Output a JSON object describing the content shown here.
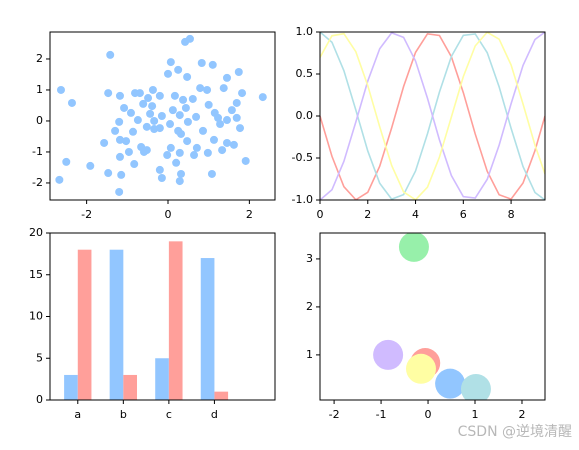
{
  "chart_data": [
    {
      "type": "scatter",
      "color": "#92c6ff",
      "x": [
        0.42,
        0.54,
        -1.42,
        0.83,
        0.07,
        1.1,
        0.25,
        0,
        0.47,
        1.74,
        1.45,
        -2.63,
        -2.36,
        -1.47,
        -1.18,
        -0.81,
        -0.69,
        -0.37,
        0.79,
        0.96,
        1.37,
        1.82,
        2.33,
        -0.49,
        -0.2,
        0.17,
        0.37,
        0.61,
        1.0,
        1.69,
        -1.08,
        -0.61,
        -0.39,
        0.12,
        0.44,
        1.57,
        -0.91,
        -0.44,
        -0.15,
        0.29,
        0.69,
        1.15,
        1.69,
        -1.2,
        -0.74,
        -0.34,
        0.05,
        0.49,
        1.23,
        1.45,
        -0.52,
        -0.2,
        0.25,
        1.28,
        1.77,
        -1.3,
        -0.86,
        -0.34,
        0.32,
        0.86,
        -1.18,
        -1.03,
        -1.57,
        0.47,
        1.13,
        1.45,
        -0.66,
        -0.52,
        0.07,
        0.71,
        1.62,
        -0.96,
        -0.59,
        -0.02,
        0.29,
        0.98,
        1.33,
        -1.18,
        0.64,
        1.91,
        -2.5,
        -0.83,
        0.2,
        -1.91,
        -0.2,
        -1.47,
        -1.15,
        -0.15,
        0.32,
        1.08,
        -2.67,
        0.29,
        -1.2
      ],
      "y": [
        2.55,
        2.65,
        2.13,
        1.87,
        1.9,
        1.81,
        1.65,
        1.52,
        1.42,
        1.58,
        1.39,
        1.0,
        0.58,
        0.9,
        0.81,
        0.9,
        0.9,
        1.0,
        1.06,
        1.0,
        1.06,
        0.9,
        0.77,
        0.74,
        0.81,
        0.81,
        0.68,
        0.71,
        0.52,
        0.58,
        0.42,
        0.55,
        0.48,
        0.35,
        0.42,
        0.35,
        0.26,
        0.23,
        0.16,
        0.19,
        0.13,
        0.26,
        0.1,
        -0.03,
        0.03,
        0.0,
        -0.1,
        -0.03,
        0.1,
        0.03,
        -0.19,
        -0.23,
        -0.32,
        -0.1,
        -0.23,
        -0.32,
        -0.35,
        -0.26,
        -0.42,
        -0.32,
        -0.61,
        -0.65,
        -0.71,
        -0.65,
        -0.61,
        -0.71,
        -0.84,
        -0.94,
        -0.87,
        -0.87,
        -0.77,
        -1.0,
        -1.0,
        -1.1,
        -1.03,
        -1.03,
        -0.94,
        -1.16,
        -1.1,
        -1.29,
        -1.32,
        -1.39,
        -1.35,
        -1.45,
        -1.58,
        -1.68,
        -1.74,
        -1.84,
        -1.71,
        -1.71,
        -1.9,
        -1.94,
        -2.29
      ],
      "xlim": [
        -2.9,
        2.63
      ],
      "ylim": [
        -2.55,
        2.87
      ],
      "xticks": [
        -2,
        0,
        2
      ],
      "yticks": [
        -2,
        -1,
        0,
        1,
        2
      ]
    },
    {
      "type": "line",
      "x": [
        0,
        0.5,
        1,
        1.5,
        2,
        2.5,
        3,
        3.5,
        4,
        4.5,
        5,
        5.5,
        6,
        6.5,
        7,
        7.5,
        8,
        8.5,
        9,
        9.42
      ],
      "series": [
        {
          "color": "#ff9f9a",
          "values": [
            0,
            -0.479,
            -0.841,
            -0.997,
            -0.909,
            -0.598,
            -0.141,
            0.351,
            0.757,
            0.978,
            0.959,
            0.706,
            0.279,
            -0.215,
            -0.657,
            -0.938,
            -0.989,
            -0.798,
            -0.412,
            0.0
          ]
        },
        {
          "color": "#b0e0e6",
          "values": [
            1,
            0.878,
            0.54,
            0.071,
            -0.416,
            -0.801,
            -0.99,
            -0.936,
            -0.654,
            -0.211,
            0.284,
            0.709,
            0.96,
            0.977,
            0.754,
            0.347,
            -0.146,
            -0.602,
            -0.911,
            -1.0
          ]
        },
        {
          "color": "#d0bbff",
          "values": [
            -1,
            -0.878,
            -0.54,
            -0.071,
            0.416,
            0.801,
            0.99,
            0.936,
            0.654,
            0.211,
            -0.284,
            -0.709,
            -0.96,
            -0.977,
            -0.754,
            -0.347,
            0.146,
            0.602,
            0.911,
            1.0
          ]
        },
        {
          "color": "#fffea3",
          "values": [
            0.697,
            0.955,
            0.98,
            0.765,
            0.362,
            -0.129,
            -0.589,
            -0.904,
            -0.998,
            -0.848,
            -0.49,
            -0.012,
            0.469,
            0.835,
            0.997,
            0.914,
            0.608,
            0.143,
            -0.347,
            -0.69
          ]
        }
      ],
      "xlim": [
        0,
        9.42
      ],
      "ylim": [
        -1,
        1
      ],
      "xticks": [
        0,
        2,
        4,
        6,
        8
      ],
      "yticks": [
        {
          "value": -1,
          "label": "-1.0"
        },
        {
          "value": -0.5,
          "label": "-0.5"
        },
        {
          "value": 0,
          "label": "0.0"
        },
        {
          "value": 0.5,
          "label": "0.5"
        },
        {
          "value": 1,
          "label": "1.0"
        }
      ]
    },
    {
      "type": "bar",
      "categories": [
        "a",
        "b",
        "c",
        "d"
      ],
      "series": [
        {
          "color": "#92c6ff",
          "values": [
            3,
            18,
            5,
            17
          ]
        },
        {
          "color": "#ff9f9a",
          "values": [
            18,
            3,
            19,
            1
          ]
        }
      ],
      "ylim": [
        0,
        20
      ],
      "yticks": [
        0,
        5,
        10,
        15,
        20
      ]
    },
    {
      "type": "scatter",
      "x": [
        -0.3,
        -0.06,
        -0.85,
        -0.15,
        0.47,
        1.02
      ],
      "y": [
        3.25,
        0.83,
        1.0,
        0.71,
        0.4,
        0.29
      ],
      "colors": [
        "#97f0aa",
        "#ff9f9a",
        "#d0bbff",
        "#fffea3",
        "#92c6ff",
        "#b0e0e6"
      ],
      "xlim": [
        -2.3,
        2.49
      ],
      "ylim": [
        0.06,
        3.54
      ],
      "xticks": [
        -2,
        -1,
        0,
        1,
        2
      ],
      "yticks": [
        1,
        2,
        3
      ]
    }
  ],
  "watermark": "CSDN @逆境清醒"
}
